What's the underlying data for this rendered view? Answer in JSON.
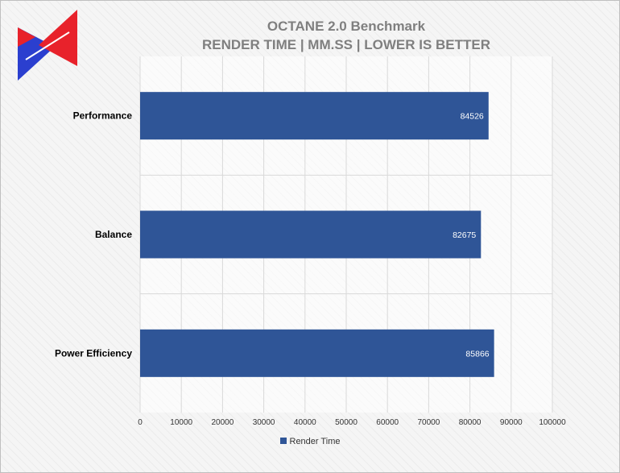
{
  "colors": {
    "bar": "#2f5597",
    "grid": "#d9d9d9",
    "title": "#7f7f7f",
    "logo_red": "#e8222b",
    "logo_blue": "#2b3fcf"
  },
  "logo": {
    "icon": "brand-logo-icon"
  },
  "chart_data": {
    "type": "bar",
    "orientation": "horizontal",
    "title": "OCTANE 2.0 Benchmark",
    "subtitle": "RENDER TIME | MM.SS | LOWER IS BETTER",
    "categories": [
      "Performance",
      "Balance",
      "Power Efficiency"
    ],
    "series": [
      {
        "name": "Render Time",
        "values": [
          84526,
          82675,
          85866
        ]
      }
    ],
    "xlim": [
      0,
      100000
    ],
    "xticks": [
      0,
      10000,
      20000,
      30000,
      40000,
      50000,
      60000,
      70000,
      80000,
      90000,
      100000
    ],
    "grid": true,
    "legend": "bottom",
    "data_labels": true
  }
}
